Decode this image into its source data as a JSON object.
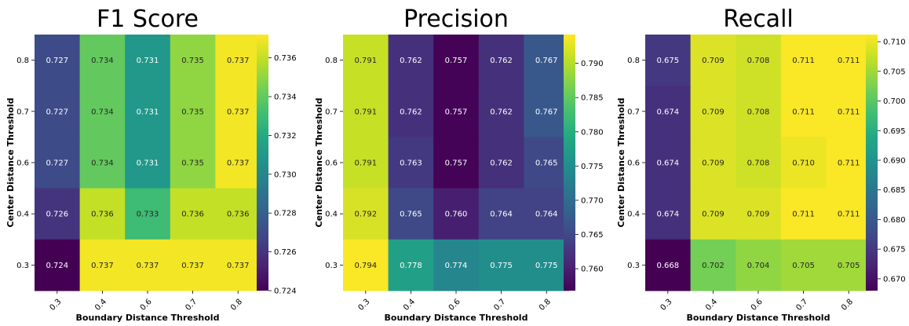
{
  "chart_data": [
    {
      "type": "heatmap",
      "title": "F1 Score",
      "xlabel": "Boundary Distance Threshold",
      "ylabel": "Center Distance Threshold",
      "x_categories": [
        "0.3",
        "0.4",
        "0.6",
        "0.7",
        "0.8"
      ],
      "y_categories": [
        "0.8",
        "0.7",
        "0.6",
        "0.4",
        "0.3"
      ],
      "values": [
        [
          0.727,
          0.734,
          0.731,
          0.735,
          0.737
        ],
        [
          0.727,
          0.734,
          0.731,
          0.735,
          0.737
        ],
        [
          0.727,
          0.734,
          0.731,
          0.735,
          0.737
        ],
        [
          0.726,
          0.736,
          0.733,
          0.736,
          0.736
        ],
        [
          0.724,
          0.737,
          0.737,
          0.737,
          0.737
        ]
      ],
      "cell_labels": [
        [
          "0.727",
          "0.734",
          "0.731",
          "0.735",
          "0.737"
        ],
        [
          "0.727",
          "0.734",
          "0.731",
          "0.735",
          "0.737"
        ],
        [
          "0.727",
          "0.734",
          "0.731",
          "0.735",
          "0.737"
        ],
        [
          "0.726",
          "0.736",
          "0.733",
          "0.736",
          "0.736"
        ],
        [
          "0.724",
          "0.737",
          "0.737",
          "0.737",
          "0.737"
        ]
      ],
      "colorbar": {
        "min": 0.724,
        "max": 0.7372,
        "ticks": [
          0.724,
          0.726,
          0.728,
          0.73,
          0.732,
          0.734,
          0.736
        ],
        "tick_labels": [
          "0.724",
          "0.726",
          "0.728",
          "0.730",
          "0.732",
          "0.734",
          "0.736"
        ]
      },
      "colormap": "viridis"
    },
    {
      "type": "heatmap",
      "title": "Precision",
      "xlabel": "Boundary Distance Threshold",
      "ylabel": "Center Distance Threshold",
      "x_categories": [
        "0.3",
        "0.4",
        "0.6",
        "0.7",
        "0.8"
      ],
      "y_categories": [
        "0.8",
        "0.7",
        "0.6",
        "0.4",
        "0.3"
      ],
      "values": [
        [
          0.791,
          0.762,
          0.757,
          0.762,
          0.767
        ],
        [
          0.791,
          0.762,
          0.757,
          0.762,
          0.767
        ],
        [
          0.791,
          0.763,
          0.757,
          0.762,
          0.765
        ],
        [
          0.792,
          0.765,
          0.76,
          0.764,
          0.764
        ],
        [
          0.794,
          0.778,
          0.774,
          0.775,
          0.775
        ]
      ],
      "cell_labels": [
        [
          "0.791",
          "0.762",
          "0.757",
          "0.762",
          "0.767"
        ],
        [
          "0.791",
          "0.762",
          "0.757",
          "0.762",
          "0.767"
        ],
        [
          "0.791",
          "0.763",
          "0.757",
          "0.762",
          "0.765"
        ],
        [
          "0.792",
          "0.765",
          "0.760",
          "0.764",
          "0.764"
        ],
        [
          "0.794",
          "0.778",
          "0.774",
          "0.775",
          "0.775"
        ]
      ],
      "colorbar": {
        "min": 0.7568,
        "max": 0.7942,
        "ticks": [
          0.76,
          0.765,
          0.77,
          0.775,
          0.78,
          0.785,
          0.79
        ],
        "tick_labels": [
          "0.760",
          "0.765",
          "0.770",
          "0.775",
          "0.780",
          "0.785",
          "0.790"
        ]
      },
      "colormap": "viridis"
    },
    {
      "type": "heatmap",
      "title": "Recall",
      "xlabel": "Boundary Distance Threshold",
      "ylabel": "Center Distance Threshold",
      "x_categories": [
        "0.3",
        "0.4",
        "0.6",
        "0.7",
        "0.8"
      ],
      "y_categories": [
        "0.8",
        "0.7",
        "0.6",
        "0.4",
        "0.3"
      ],
      "values": [
        [
          0.675,
          0.709,
          0.708,
          0.711,
          0.711
        ],
        [
          0.674,
          0.709,
          0.708,
          0.711,
          0.711
        ],
        [
          0.674,
          0.709,
          0.708,
          0.71,
          0.711
        ],
        [
          0.674,
          0.709,
          0.709,
          0.711,
          0.711
        ],
        [
          0.668,
          0.702,
          0.704,
          0.705,
          0.705
        ]
      ],
      "cell_labels": [
        [
          "0.675",
          "0.709",
          "0.708",
          "0.711",
          "0.711"
        ],
        [
          "0.674",
          "0.709",
          "0.708",
          "0.711",
          "0.711"
        ],
        [
          "0.674",
          "0.709",
          "0.708",
          "0.710",
          "0.711"
        ],
        [
          "0.674",
          "0.709",
          "0.709",
          "0.711",
          "0.711"
        ],
        [
          "0.668",
          "0.702",
          "0.704",
          "0.705",
          "0.705"
        ]
      ],
      "colorbar": {
        "min": 0.668,
        "max": 0.7112,
        "ticks": [
          0.67,
          0.675,
          0.68,
          0.685,
          0.69,
          0.695,
          0.7,
          0.705,
          0.71
        ],
        "tick_labels": [
          "0.670",
          "0.675",
          "0.680",
          "0.685",
          "0.690",
          "0.695",
          "0.700",
          "0.705",
          "0.710"
        ]
      },
      "colormap": "viridis"
    }
  ]
}
